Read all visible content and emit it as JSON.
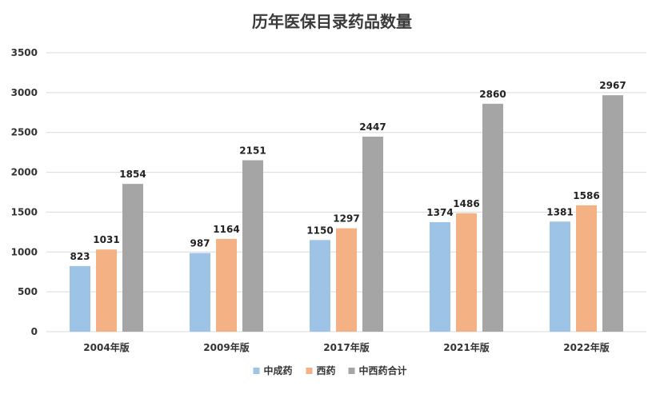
{
  "chart_data": {
    "type": "bar",
    "title": "历年医保目录药品数量",
    "categories": [
      "2004年版",
      "2009年版",
      "2017年版",
      "2021年版",
      "2022年版"
    ],
    "series": [
      {
        "name": "中成药",
        "color": "#9dc3e6",
        "values": [
          823,
          987,
          1150,
          1374,
          1381
        ]
      },
      {
        "name": "西药",
        "color": "#f4b183",
        "values": [
          1031,
          1164,
          1297,
          1486,
          1586
        ]
      },
      {
        "name": "中西药合计",
        "color": "#a5a5a5",
        "values": [
          1854,
          2151,
          2447,
          2860,
          2967
        ]
      }
    ],
    "ylim": [
      0,
      3500
    ],
    "yticks": [
      0,
      500,
      1000,
      1500,
      2000,
      2500,
      3000,
      3500
    ],
    "grid": true,
    "legend_position": "bottom"
  }
}
